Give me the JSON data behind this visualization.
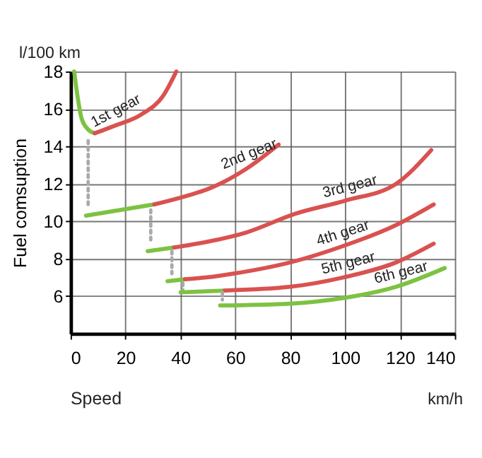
{
  "chart_data": {
    "type": "line",
    "ylabel": "Fuel comsuption",
    "xlabel": "Speed",
    "xlim": [
      0,
      140
    ],
    "xticks": [
      0,
      20,
      40,
      60,
      80,
      100,
      120,
      140
    ],
    "ylim": [
      4,
      18
    ],
    "yticks": [
      6,
      8,
      10,
      12,
      14,
      16,
      18
    ],
    "grid": true,
    "marker": "none",
    "line_style": "solid",
    "series": [
      {
        "color": "#7dc242",
        "x": [
          1.3,
          2.5,
          4.0,
          6.4,
          8.8
        ],
        "values": [
          18,
          16.7,
          15.5,
          14.9,
          14.7
        ]
      },
      {
        "color": "#d9524f",
        "x": [
          8.8,
          16,
          25.7,
          33.7,
          38.5
        ],
        "values": [
          14.7,
          15.1,
          15.7,
          16.7,
          18
        ]
      },
      {
        "color": "#aaaaaa",
        "line_style": "dotted",
        "x": [
          6.4,
          6.4
        ],
        "values": [
          14.3,
          10.8
        ]
      },
      {
        "color": "#7dc242",
        "x": [
          5.6,
          30.5
        ],
        "values": [
          10.3,
          10.9
        ]
      },
      {
        "color": "#d9524f",
        "x": [
          30.5,
          43.3,
          49.7,
          64,
          75.8
        ],
        "values": [
          10.9,
          11.4,
          11.7,
          12.8,
          14.1
        ]
      },
      {
        "color": "#aaaaaa",
        "line_style": "dotted",
        "x": [
          29.2,
          29.2
        ],
        "values": [
          10.6,
          8.8
        ]
      },
      {
        "color": "#7dc242",
        "x": [
          28.1,
          37.7
        ],
        "values": [
          8.4,
          8.6
        ]
      },
      {
        "color": "#d9524f",
        "x": [
          37.7,
          49.7,
          64,
          81.8,
          100,
          118.6,
          131.4
        ],
        "values": [
          8.6,
          8.9,
          9.4,
          10.4,
          11.1,
          12.0,
          13.8
        ]
      },
      {
        "color": "#aaaaaa",
        "line_style": "dotted",
        "x": [
          36.9,
          36.9
        ],
        "values": [
          8.4,
          7.2
        ]
      },
      {
        "color": "#7dc242",
        "x": [
          35.3,
          41.7
        ],
        "values": [
          6.8,
          6.9
        ]
      },
      {
        "color": "#d9524f",
        "x": [
          41.7,
          49.7,
          59.3,
          80,
          97.8,
          118.6,
          132.3
        ],
        "values": [
          6.9,
          7.0,
          7.2,
          7.8,
          8.6,
          9.8,
          10.9
        ]
      },
      {
        "color": "#aaaaaa",
        "line_style": "dotted",
        "x": [
          40.9,
          40.9
        ],
        "values": [
          6.7,
          6.2
        ]
      },
      {
        "color": "#7dc242",
        "x": [
          40.1,
          56.1
        ],
        "values": [
          6.2,
          6.3
        ]
      },
      {
        "color": "#d9524f",
        "x": [
          56.1,
          80.1,
          99.4,
          118.6,
          132.3
        ],
        "values": [
          6.3,
          6.5,
          7.0,
          7.8,
          8.8
        ]
      },
      {
        "color": "#aaaaaa",
        "line_style": "dotted",
        "x": [
          55.3,
          55.3
        ],
        "values": [
          6.2,
          5.8
        ]
      },
      {
        "color": "#7dc242",
        "x": [
          54.5,
          80.1,
          99.4,
          118.6,
          136.3
        ],
        "values": [
          5.5,
          5.6,
          5.9,
          6.5,
          7.5
        ]
      }
    ],
    "annotations": [
      {
        "text": "1st gear",
        "x": 16,
        "y": 15.1
      },
      {
        "text": "2nd gear",
        "x": 64,
        "y": 12.8
      },
      {
        "text": "3rd gear",
        "x": 100,
        "y": 11.1
      },
      {
        "text": "4th gear",
        "x": 97.8,
        "y": 8.6
      },
      {
        "text": "5th gear",
        "x": 99.4,
        "y": 7.0
      },
      {
        "text": "6th gear",
        "x": 118.6,
        "y": 6.5
      },
      "l/100 km",
      "km/h"
    ]
  }
}
